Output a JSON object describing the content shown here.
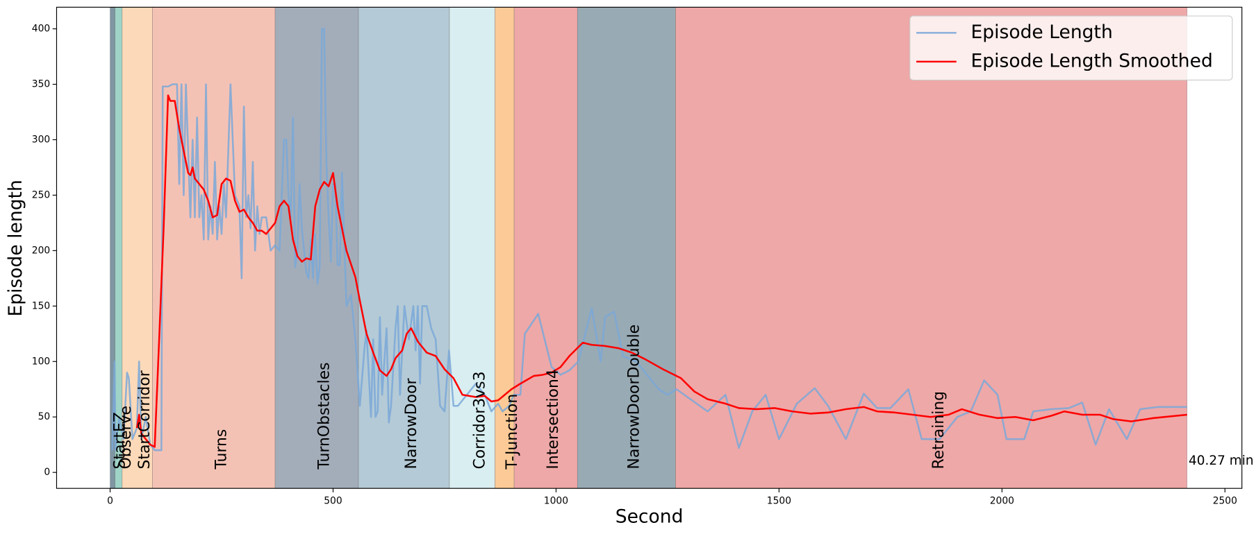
{
  "chart_data": {
    "type": "line",
    "xlabel": "Second",
    "ylabel": "Episode length",
    "xlim": [
      -120,
      2538
    ],
    "ylim": [
      -14.4,
      419.5
    ],
    "xticks": [
      0,
      500,
      1000,
      1500,
      2000,
      2500
    ],
    "yticks": [
      0,
      50,
      100,
      150,
      200,
      250,
      300,
      350,
      400
    ],
    "grid": false,
    "legend": "upper right",
    "annotation": "40.27 min",
    "spans": [
      {
        "label": "StartEZ",
        "start": 0,
        "end": 11,
        "color": "#7f96a3"
      },
      {
        "label": "Observe",
        "start": 11,
        "end": 27,
        "color": "#9fd3c7"
      },
      {
        "label": "StartCorridor",
        "start": 27,
        "end": 95,
        "color": "#fcd9b8"
      },
      {
        "label": "Turns",
        "start": 95,
        "end": 370,
        "color": "#f4c2b5"
      },
      {
        "label": "TurnObstacles",
        "start": 370,
        "end": 557,
        "color": "#a3adb9"
      },
      {
        "label": "NarrowDoor",
        "start": 557,
        "end": 761,
        "color": "#b4cad6"
      },
      {
        "label": "Corridor3vs3",
        "start": 761,
        "end": 863,
        "color": "#d9eef1"
      },
      {
        "label": "T-Junction",
        "start": 863,
        "end": 906,
        "color": "#fbca96"
      },
      {
        "label": "Intersection4",
        "start": 906,
        "end": 1048,
        "color": "#eea8a7"
      },
      {
        "label": "NarrowDoorDouble",
        "start": 1048,
        "end": 1268,
        "color": "#98aab4"
      },
      {
        "label": "Retraining",
        "start": 1268,
        "end": 2415,
        "color": "#eea8a7"
      }
    ],
    "series": [
      {
        "name": "Episode Length",
        "color": "#7aa8d8",
        "x": [
          5,
          10,
          12,
          20,
          30,
          38,
          42,
          50,
          60,
          65,
          70,
          80,
          90,
          100,
          115,
          118,
          130,
          140,
          150,
          155,
          160,
          165,
          170,
          180,
          185,
          190,
          195,
          200,
          205,
          210,
          215,
          220,
          225,
          230,
          235,
          240,
          245,
          250,
          255,
          260,
          270,
          275,
          280,
          290,
          295,
          300,
          305,
          310,
          315,
          320,
          325,
          330,
          335,
          340,
          350,
          360,
          370,
          380,
          390,
          395,
          400,
          405,
          410,
          415,
          420,
          425,
          430,
          440,
          445,
          450,
          455,
          460,
          465,
          470,
          475,
          480,
          485,
          490,
          495,
          500,
          505,
          510,
          515,
          520,
          530,
          540,
          545,
          550,
          560,
          570,
          575,
          585,
          590,
          595,
          600,
          605,
          610,
          620,
          625,
          630,
          640,
          645,
          650,
          660,
          670,
          680,
          685,
          690,
          695,
          700,
          710,
          720,
          730,
          740,
          750,
          760,
          770,
          780,
          800,
          820,
          840,
          855,
          870,
          880,
          895,
          905,
          920,
          930,
          960,
          990,
          1010,
          1030,
          1050,
          1080,
          1100,
          1110,
          1130,
          1150,
          1180,
          1200,
          1230,
          1250,
          1270,
          1340,
          1380,
          1410,
          1440,
          1470,
          1500,
          1540,
          1580,
          1610,
          1650,
          1690,
          1720,
          1750,
          1790,
          1820,
          1860,
          1900,
          1930,
          1960,
          1990,
          2010,
          2050,
          2070,
          2110,
          2150,
          2180,
          2210,
          2240,
          2280,
          2310,
          2350,
          2415
        ],
        "values": [
          20,
          100,
          20,
          50,
          30,
          90,
          85,
          30,
          40,
          100,
          30,
          50,
          25,
          20,
          20,
          348,
          348,
          350,
          350,
          260,
          350,
          250,
          350,
          230,
          300,
          230,
          320,
          230,
          250,
          210,
          350,
          210,
          240,
          215,
          280,
          210,
          240,
          215,
          260,
          230,
          350,
          300,
          250,
          240,
          175,
          330,
          230,
          250,
          220,
          280,
          200,
          240,
          215,
          230,
          230,
          200,
          205,
          200,
          300,
          300,
          250,
          230,
          320,
          185,
          200,
          260,
          220,
          180,
          175,
          210,
          175,
          215,
          170,
          185,
          400,
          400,
          280,
          230,
          190,
          260,
          260,
          187,
          187,
          270,
          150,
          160,
          140,
          120,
          60,
          110,
          128,
          50,
          120,
          50,
          55,
          140,
          70,
          130,
          45,
          60,
          130,
          150,
          70,
          150,
          120,
          150,
          110,
          150,
          80,
          150,
          150,
          130,
          120,
          60,
          55,
          110,
          60,
          60,
          70,
          80,
          70,
          55,
          62,
          55,
          60,
          70,
          70,
          125,
          143,
          95,
          88,
          92,
          100,
          148,
          100,
          140,
          145,
          105,
          100,
          90,
          75,
          70,
          75,
          55,
          70,
          22,
          55,
          70,
          30,
          62,
          76,
          60,
          30,
          71,
          58,
          58,
          75,
          30,
          30,
          50,
          55,
          83,
          70,
          30,
          30,
          55,
          57,
          58,
          63,
          25,
          57,
          30,
          57,
          59,
          59
        ]
      },
      {
        "name": "Episode Length Smoothed",
        "color": "#ff0000",
        "x": [
          60,
          65,
          70,
          80,
          90,
          100,
          110,
          120,
          130,
          135,
          145,
          155,
          165,
          175,
          180,
          185,
          190,
          200,
          210,
          220,
          230,
          240,
          250,
          260,
          270,
          280,
          290,
          300,
          310,
          320,
          330,
          340,
          350,
          360,
          370,
          380,
          390,
          400,
          410,
          420,
          430,
          440,
          450,
          460,
          470,
          480,
          490,
          500,
          510,
          530,
          550,
          560,
          575,
          590,
          605,
          620,
          630,
          640,
          655,
          665,
          675,
          690,
          710,
          730,
          750,
          770,
          790,
          820,
          840,
          855,
          870,
          900,
          920,
          950,
          970,
          990,
          1010,
          1030,
          1060,
          1080,
          1110,
          1140,
          1170,
          1200,
          1240,
          1280,
          1310,
          1340,
          1380,
          1410,
          1450,
          1490,
          1530,
          1570,
          1610,
          1650,
          1690,
          1720,
          1760,
          1800,
          1840,
          1880,
          1910,
          1950,
          1990,
          2030,
          2070,
          2110,
          2140,
          2180,
          2220,
          2250,
          2290,
          2340,
          2415
        ],
        "values": [
          40,
          52,
          35,
          30,
          25,
          23,
          120,
          220,
          340,
          335,
          335,
          310,
          290,
          270,
          268,
          275,
          265,
          260,
          255,
          245,
          230,
          232,
          260,
          265,
          263,
          245,
          235,
          237,
          230,
          225,
          218,
          218,
          215,
          220,
          225,
          240,
          245,
          240,
          210,
          195,
          190,
          193,
          192,
          240,
          255,
          262,
          258,
          270,
          240,
          200,
          176,
          155,
          125,
          108,
          92,
          87,
          93,
          103,
          110,
          125,
          130,
          118,
          108,
          105,
          93,
          85,
          70,
          68,
          69,
          64,
          65,
          75,
          80,
          87,
          88,
          90,
          95,
          105,
          117,
          115,
          114,
          112,
          108,
          102,
          93,
          85,
          73,
          66,
          62,
          58,
          57,
          58,
          55,
          53,
          54,
          57,
          59,
          55,
          54,
          52,
          50,
          52,
          57,
          52,
          49,
          50,
          47,
          51,
          55,
          52,
          52,
          48,
          46,
          49,
          52
        ]
      }
    ]
  }
}
